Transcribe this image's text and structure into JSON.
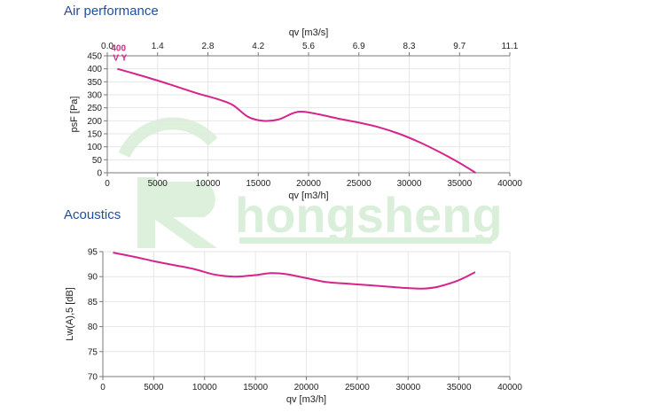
{
  "sections": {
    "air_title": "Air performance",
    "acoustic_title": "Acoustics"
  },
  "watermark": {
    "text": "hongsheng",
    "color": "#d9efd9"
  },
  "curve_color": "#d6248c",
  "chart_data": [
    {
      "type": "line",
      "title": "Air performance",
      "xlabel": "qv [m3/h]",
      "ylabel": "psF [Pa]",
      "top_axis": {
        "label": "qv [m3/s]",
        "ticks": [
          "0.0",
          "1.4",
          "2.8",
          "4.2",
          "5.6",
          "6.9",
          "8.3",
          "9.7",
          "11.1"
        ]
      },
      "xlim": [
        0,
        40000
      ],
      "ylim": [
        0,
        450
      ],
      "xticks": [
        0,
        5000,
        10000,
        15000,
        20000,
        25000,
        30000,
        35000,
        40000
      ],
      "yticks": [
        0,
        50,
        100,
        150,
        200,
        250,
        300,
        350,
        400,
        450
      ],
      "grid": true,
      "markers": [
        {
          "line1": "400",
          "line2": "V Y"
        }
      ],
      "series": [
        {
          "x": [
            1000,
            3000,
            5000,
            7000,
            9000,
            11000,
            12500,
            14000,
            15500,
            17000,
            18500,
            19500,
            21000,
            23000,
            25000,
            27000,
            29000,
            31000,
            33000,
            35000,
            36600
          ],
          "y": [
            400,
            378,
            355,
            330,
            305,
            283,
            260,
            215,
            200,
            205,
            230,
            235,
            225,
            208,
            193,
            175,
            150,
            118,
            80,
            38,
            0
          ]
        }
      ]
    },
    {
      "type": "line",
      "title": "Acoustics",
      "xlabel": "qv [m3/h]",
      "ylabel": "Lw(A),5 [dB]",
      "xlim": [
        0,
        40000
      ],
      "ylim": [
        70,
        95
      ],
      "xticks": [
        0,
        5000,
        10000,
        15000,
        20000,
        25000,
        30000,
        35000,
        40000
      ],
      "yticks": [
        70,
        75,
        80,
        85,
        90,
        95
      ],
      "grid": true,
      "series": [
        {
          "x": [
            1000,
            3000,
            5000,
            7000,
            9000,
            11000,
            13000,
            15000,
            16500,
            18000,
            20000,
            22000,
            24000,
            26000,
            28000,
            30000,
            31500,
            33000,
            35000,
            36600
          ],
          "y": [
            94.8,
            94.0,
            93.1,
            92.3,
            91.5,
            90.4,
            90.0,
            90.3,
            90.7,
            90.5,
            89.7,
            88.9,
            88.6,
            88.3,
            88.0,
            87.7,
            87.6,
            88.0,
            89.3,
            90.9
          ]
        }
      ]
    }
  ]
}
